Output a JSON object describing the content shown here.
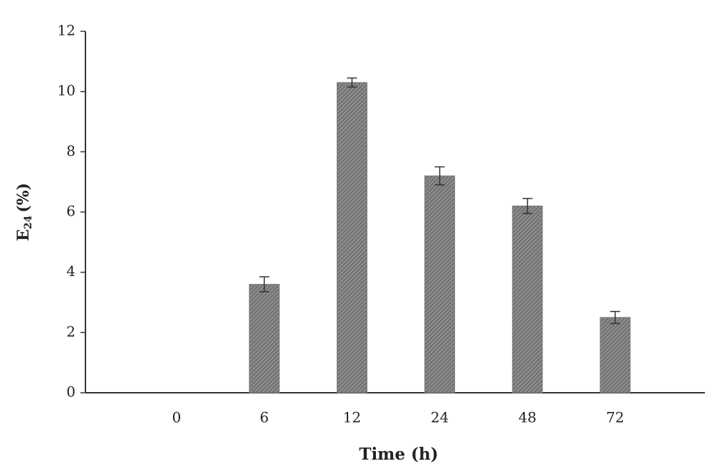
{
  "chart_data": {
    "type": "bar",
    "xlabel": "Time (h)",
    "ylabel": [
      "E",
      "24",
      "(%)"
    ],
    "categories": [
      "0",
      "6",
      "12",
      "24",
      "48",
      "72"
    ],
    "values": [
      0,
      3.6,
      10.3,
      7.2,
      6.2,
      2.5
    ],
    "errors": [
      0,
      0.25,
      0.15,
      0.3,
      0.25,
      0.2
    ],
    "color": "#777777",
    "ylim": [
      0,
      12
    ],
    "yticks": [
      0,
      2,
      4,
      6,
      8,
      10,
      12
    ],
    "grid": false
  }
}
